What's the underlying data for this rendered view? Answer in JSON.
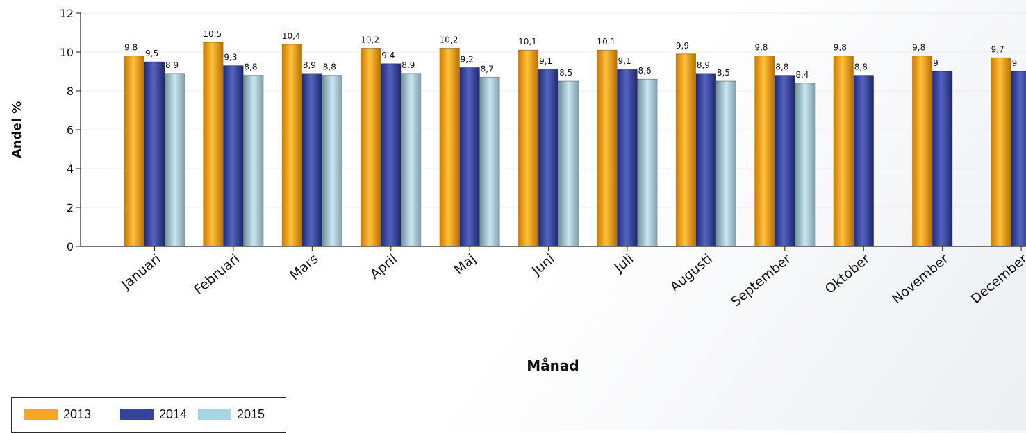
{
  "chart_data": {
    "type": "bar",
    "xlabel": "Månad",
    "ylabel": "Andel %",
    "ylim": [
      0,
      12
    ],
    "yticks": [
      "0",
      "2",
      "4",
      "6",
      "8",
      "10",
      "12"
    ],
    "grid": true,
    "legend_position": "bottom-left",
    "categories": [
      "Januari",
      "Februari",
      "Mars",
      "April",
      "Maj",
      "Juni",
      "Juli",
      "Augusti",
      "September",
      "Oktober",
      "November",
      "December"
    ],
    "series": [
      {
        "name": "2013",
        "color": "#f5a623",
        "values": [
          9.8,
          10.5,
          10.4,
          10.2,
          10.2,
          10.1,
          10.1,
          9.9,
          9.8,
          9.8,
          9.8,
          9.7
        ],
        "labels": [
          "9,8",
          "10,5",
          "10,4",
          "10,2",
          "10,2",
          "10,1",
          "10,1",
          "9,9",
          "9,8",
          "9,8",
          "9,8",
          "9,7"
        ]
      },
      {
        "name": "2014",
        "color": "#34449b",
        "values": [
          9.5,
          9.3,
          8.9,
          9.4,
          9.2,
          9.1,
          9.1,
          8.9,
          8.8,
          8.8,
          9,
          9
        ],
        "labels": [
          "9,5",
          "9,3",
          "8,9",
          "9,4",
          "9,2",
          "9,1",
          "9,1",
          "8,9",
          "8,8",
          "8,8",
          "9",
          "9"
        ]
      },
      {
        "name": "2015",
        "color": "#a9d4e3",
        "values": [
          8.9,
          8.8,
          8.8,
          8.9,
          8.7,
          8.5,
          8.6,
          8.5,
          8.4,
          null,
          null,
          null
        ],
        "labels": [
          "8,9",
          "8,8",
          "8,8",
          "8,9",
          "8,7",
          "8,5",
          "8,6",
          "8,5",
          "8,4",
          null,
          null,
          null
        ]
      }
    ]
  }
}
